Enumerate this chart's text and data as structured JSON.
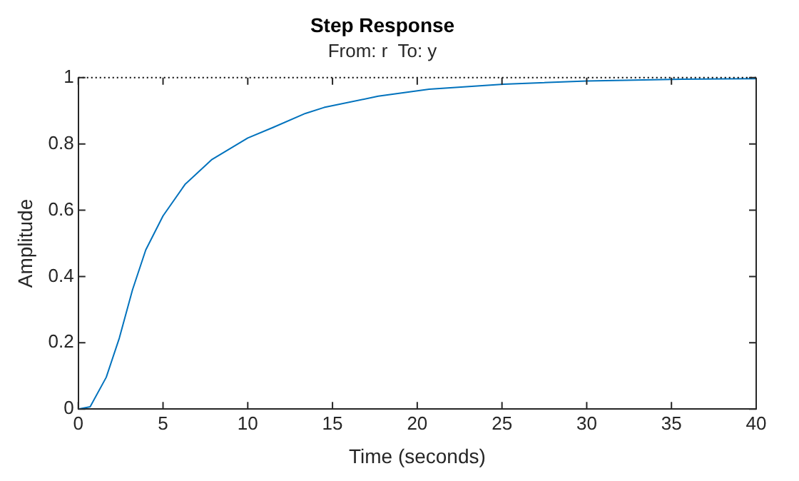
{
  "chart_data": {
    "type": "line",
    "title": "Step Response",
    "subtitle": "From: r  To: y",
    "xlabel": "Time (seconds)",
    "ylabel": "Amplitude",
    "x": [
      0,
      0.7,
      1.65,
      2.42,
      3.2,
      3.98,
      5,
      6.3,
      7.86,
      10,
      11.5,
      13.4,
      14.5,
      17.7,
      20.7,
      25.1,
      30,
      35.6,
      40
    ],
    "series": [
      {
        "color": "#0072bd",
        "values": [
          0,
          0.007,
          0.096,
          0.214,
          0.36,
          0.48,
          0.583,
          0.678,
          0.752,
          0.818,
          0.85,
          0.892,
          0.91,
          0.944,
          0.965,
          0.98,
          0.99,
          0.995,
          0.997
        ]
      }
    ],
    "xlim": [
      0,
      40
    ],
    "xticks": [
      0,
      5,
      10,
      15,
      20,
      25,
      30,
      35,
      40
    ],
    "ylim": [
      0,
      1
    ],
    "yticks": [
      0,
      0.2,
      0.4,
      0.6,
      0.8,
      1
    ],
    "ref_lines": [
      {
        "axis": "y",
        "value": 1,
        "color": "#000000",
        "line_style": "dotted"
      }
    ],
    "grid": false,
    "legend": false,
    "marker": "none",
    "line_style": "solid"
  }
}
